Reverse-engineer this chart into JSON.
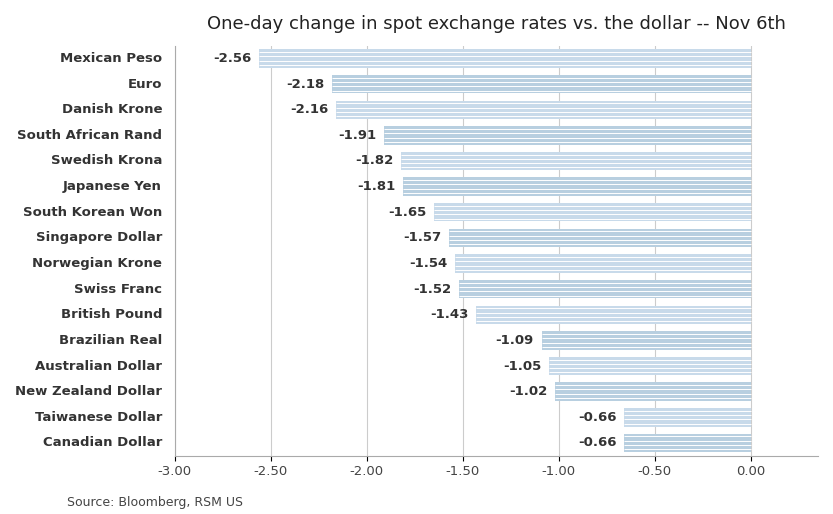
{
  "title": "One-day change in spot exchange rates vs. the dollar -- Nov 6th",
  "source": "Source: Bloomberg, RSM US",
  "categories": [
    "Canadian Dollar",
    "Taiwanese Dollar",
    "New Zealand Dollar",
    "Australian Dollar",
    "Brazilian Real",
    "British Pound",
    "Swiss Franc",
    "Norwegian Krone",
    "Singapore Dollar",
    "South Korean Won",
    "Japanese Yen",
    "Swedish Krona",
    "South African Rand",
    "Danish Krone",
    "Euro",
    "Mexican Peso"
  ],
  "values": [
    -0.66,
    -0.66,
    -1.02,
    -1.05,
    -1.09,
    -1.43,
    -1.52,
    -1.54,
    -1.57,
    -1.65,
    -1.81,
    -1.82,
    -1.91,
    -2.16,
    -2.18,
    -2.56
  ],
  "bar_colors": [
    "#b8cfe0",
    "#c8daea",
    "#b8cfe0",
    "#c8daea",
    "#b8cfe0",
    "#c8daea",
    "#b8cfe0",
    "#c8daea",
    "#b8cfe0",
    "#c8daea",
    "#b8cfe0",
    "#c8daea",
    "#b8cfe0",
    "#c8daea",
    "#b8cfe0",
    "#c8daea"
  ],
  "xlim": [
    -3.0,
    0.35
  ],
  "xticks": [
    -3.0,
    -2.5,
    -2.0,
    -1.5,
    -1.0,
    -0.5,
    0.0
  ],
  "xtick_labels": [
    "-3.00",
    "-2.50",
    "-2.00",
    "-1.50",
    "-1.00",
    "-0.50",
    "0.00"
  ],
  "title_fontsize": 13,
  "label_fontsize": 9.5,
  "tick_fontsize": 9.5,
  "source_fontsize": 9,
  "value_label_fontsize": 9.5,
  "background_color": "#ffffff"
}
